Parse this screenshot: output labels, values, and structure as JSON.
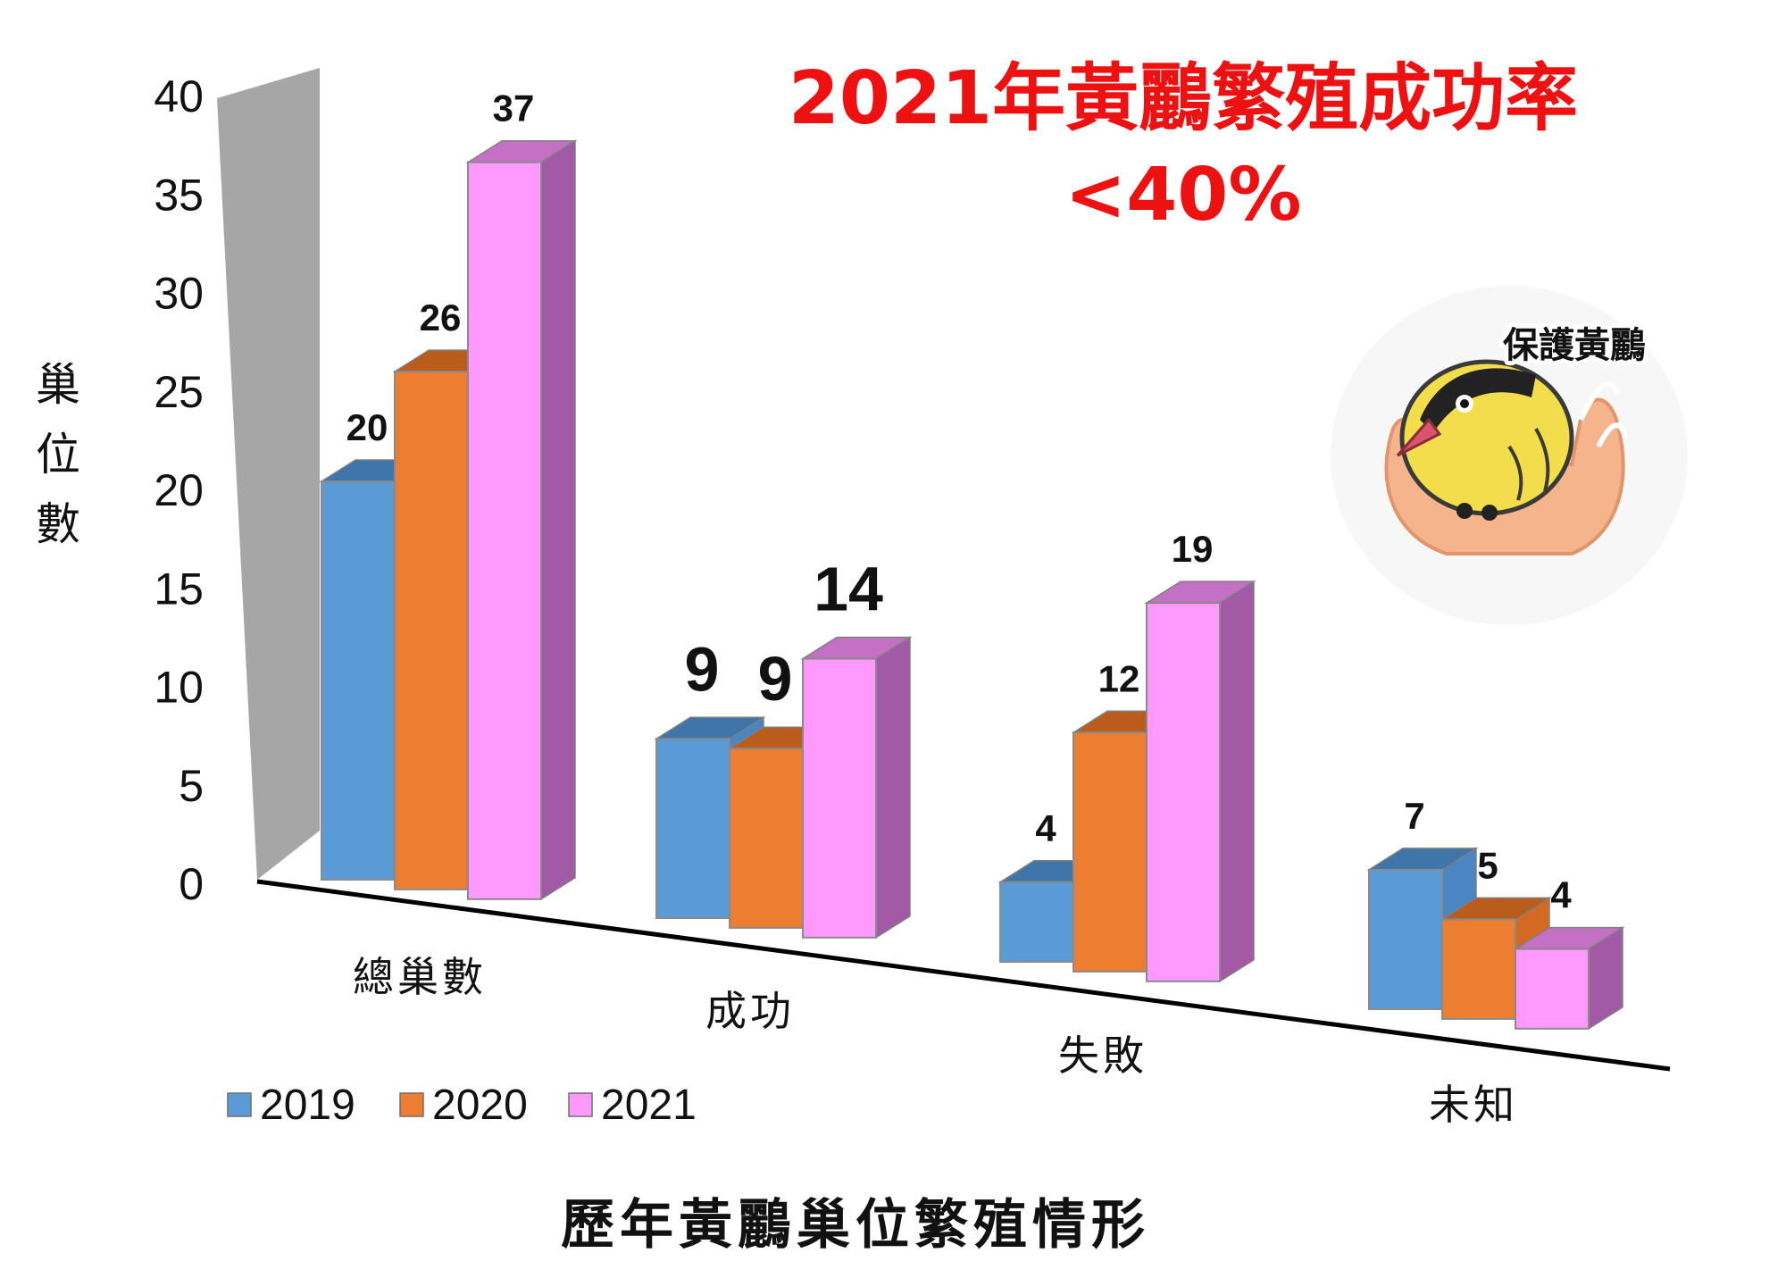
{
  "chart_data": {
    "type": "bar",
    "title": "2021年黃鸝繁殖成功率",
    "subtitle": "<40%",
    "caption": "歷年黃鸝巢位繁殖情形",
    "ylabel": "巢位數",
    "xlabel": "",
    "ylim": [
      0,
      40
    ],
    "yticks": [
      0,
      5,
      10,
      15,
      20,
      25,
      30,
      35,
      40
    ],
    "categories": [
      "總巢數",
      "成功",
      "失敗",
      "未知"
    ],
    "series": [
      {
        "name": "2019",
        "values": [
          20,
          9,
          4,
          7
        ],
        "color": "#5b9bd5"
      },
      {
        "name": "2020",
        "values": [
          26,
          9,
          12,
          5
        ],
        "color": "#ed7d31"
      },
      {
        "name": "2021",
        "values": [
          37,
          14,
          19,
          4
        ],
        "color": "#ff99ff"
      }
    ],
    "highlight_labels": {
      "color": "#ff0000",
      "category": "成功"
    },
    "legend": "bottom-left",
    "grid": false
  },
  "badge": {
    "label": "保護黃鸝",
    "icon": "oriole-in-hands-icon"
  }
}
